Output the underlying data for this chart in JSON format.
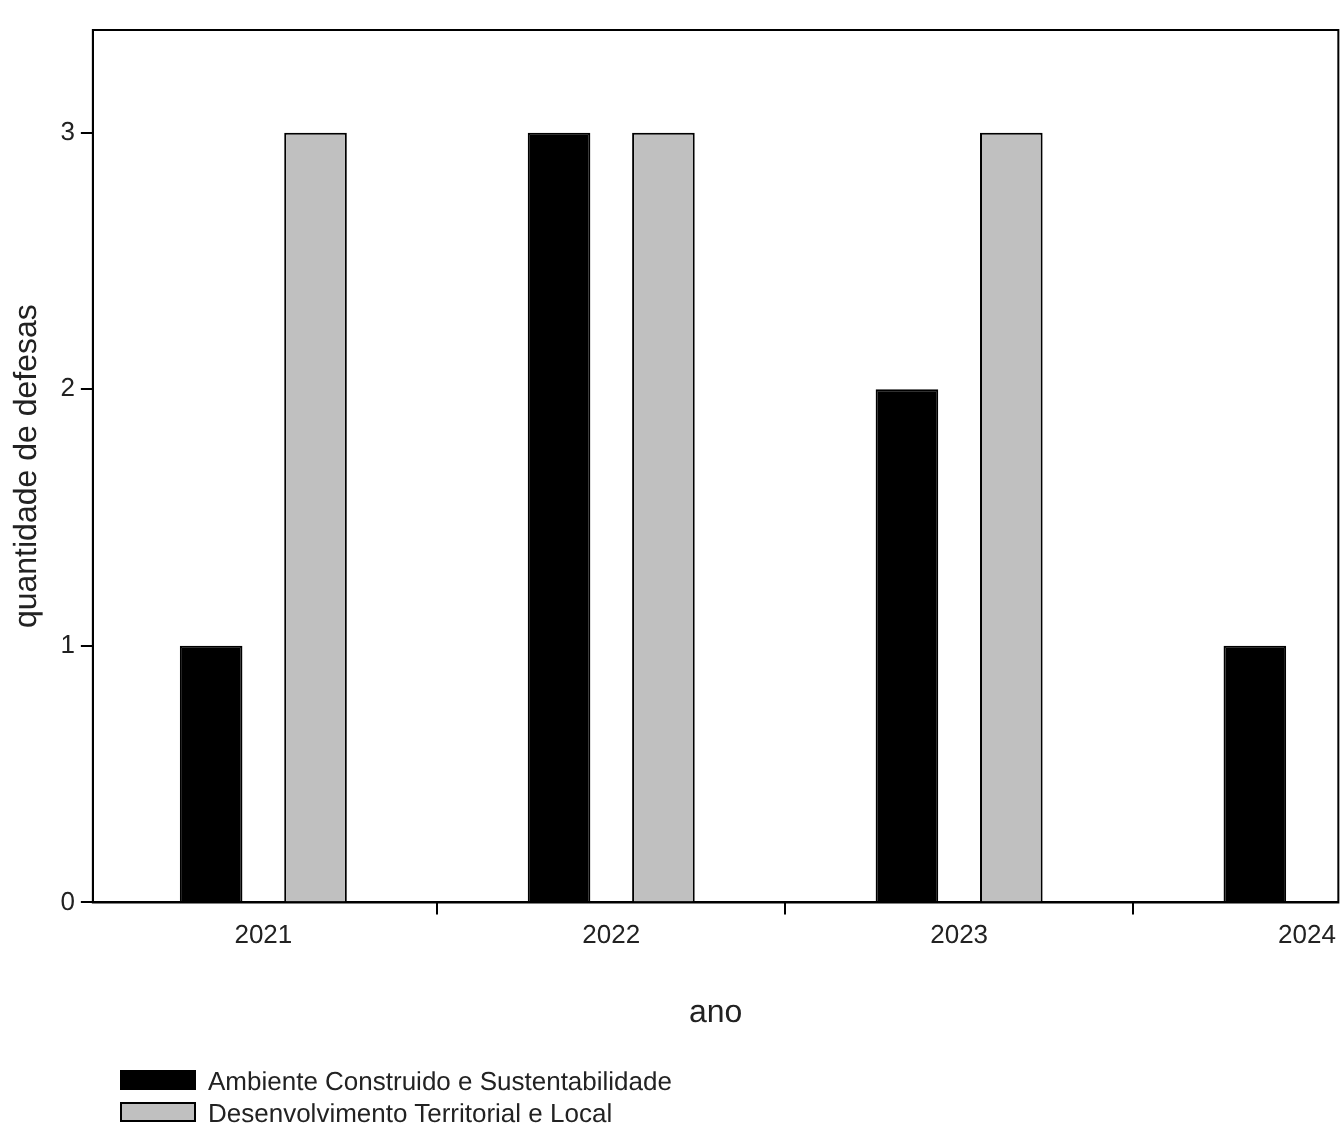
{
  "chart_data": {
    "type": "bar",
    "xlabel": "ano",
    "ylabel": "quantidade de defesas",
    "x": [
      2021,
      2022,
      2023,
      2024
    ],
    "series": [
      {
        "name": "Ambiente Construido e Sustentabilidade",
        "color": "#000000",
        "values": [
          1,
          3,
          2,
          1
        ]
      },
      {
        "name": "Desenvolvimento Territorial e Local",
        "color": "#c0c0c0",
        "values": [
          3,
          3,
          3,
          null
        ]
      }
    ],
    "xlim": [
      2020.51,
      2024.09
    ],
    "xticks": [
      2021,
      2022,
      2023,
      2024
    ],
    "ylim": [
      0,
      3.4
    ],
    "yticks": [
      0,
      1,
      2,
      3
    ],
    "grid": false,
    "legend": "bottom"
  }
}
